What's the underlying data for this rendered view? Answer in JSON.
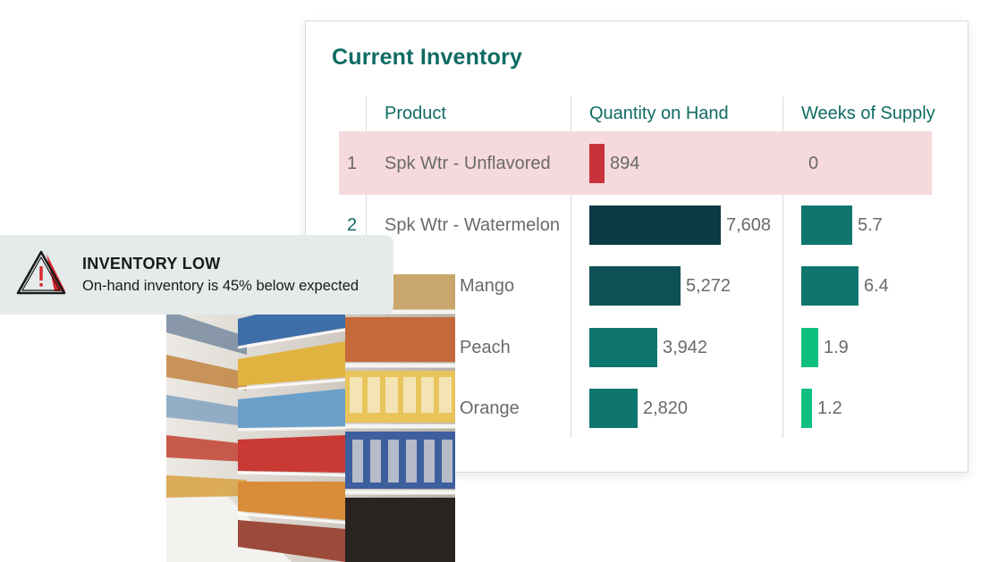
{
  "card": {
    "title": "Current Inventory",
    "columns": {
      "product": "Product",
      "quantity": "Quantity on Hand",
      "weeks": "Weeks of Supply"
    }
  },
  "rows": [
    {
      "rank": "1",
      "product": "Spk Wtr - Unflavored",
      "quantity_label": "894",
      "quantity": 894,
      "quantity_color": "#c8333b",
      "weeks_label": "0",
      "weeks": 0,
      "weeks_color": ""
    },
    {
      "rank": "2",
      "product": "Spk Wtr - Watermelon",
      "quantity_label": "7,608",
      "quantity": 7608,
      "quantity_color": "#0d3b44",
      "weeks_label": "5.7",
      "weeks": 5.7,
      "weeks_color": "#0f766e"
    },
    {
      "rank": "",
      "product": "Mango",
      "quantity_label": "5,272",
      "quantity": 5272,
      "quantity_color": "#0d5157",
      "weeks_label": "6.4",
      "weeks": 6.4,
      "weeks_color": "#0f766e"
    },
    {
      "rank": "",
      "product": "Peach",
      "quantity_label": "3,942",
      "quantity": 3942,
      "quantity_color": "#0f766e",
      "weeks_label": "1.9",
      "weeks": 1.9,
      "weeks_color": "#0fbf7f"
    },
    {
      "rank": "",
      "product": "Orange",
      "quantity_label": "2,820",
      "quantity": 2820,
      "quantity_color": "#0f766e",
      "weeks_label": "1.2",
      "weeks": 1.2,
      "weeks_color": "#0fbf7f"
    }
  ],
  "alert": {
    "title": "INVENTORY LOW",
    "message": "On-hand inventory is 45% below expected",
    "icon": "warning-triangle-icon",
    "accent": "#d9262c"
  },
  "photo": {
    "subject": "grocery-shelves-image"
  }
}
